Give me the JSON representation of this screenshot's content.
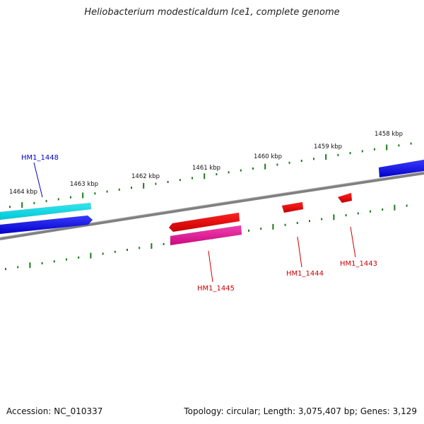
{
  "title": "Heliobacterium modesticaldum Ice1, complete genome",
  "footer": {
    "accession": "Accession: NC_010337",
    "summary": "Topology: circular; Length: 3,075,407 bp; Genes: 3,129"
  },
  "scale_labels": [
    "1464 kbp",
    "1463 kbp",
    "1462 kbp",
    "1461 kbp",
    "1460 kbp",
    "1459 kbp",
    "1458 kbp"
  ],
  "gene_labels": [
    "HM1_1448",
    "HM1_1445",
    "HM1_1444",
    "HM1_1443"
  ],
  "colors": {
    "backbone": "#808080",
    "tick": "#1a7a1a",
    "forward_gene": "#0000ee",
    "cyan_gene": "#00e5ee",
    "reverse_gene": "#ee0000",
    "magenta_gene": "#ee1499",
    "label_blue": "#0000cc",
    "label_red": "#cc0000"
  }
}
